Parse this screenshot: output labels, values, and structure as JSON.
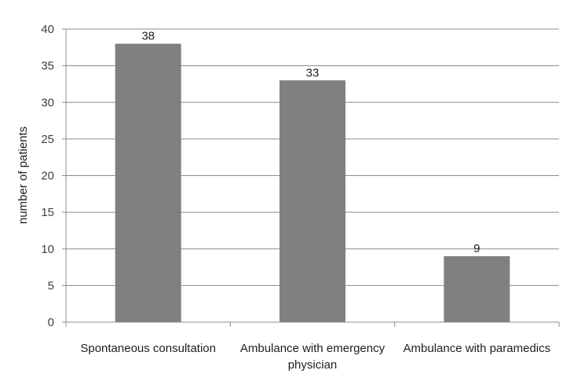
{
  "chart_data": {
    "type": "bar",
    "title": "",
    "xlabel": "",
    "ylabel": "number of patients",
    "ylim": [
      0,
      40
    ],
    "ytick_step": 5,
    "grid": true,
    "categories": [
      [
        "Spontaneous consultation"
      ],
      [
        "Ambulance with emergency",
        "physician"
      ],
      [
        "Ambulance with paramedics"
      ]
    ],
    "values": [
      38,
      33,
      9
    ],
    "data_labels": [
      "38",
      "33",
      "9"
    ],
    "colors": {
      "bar": "#808080",
      "grid": "#8c8c8c",
      "axis": "#8c8c8c",
      "text": "#202020"
    }
  }
}
